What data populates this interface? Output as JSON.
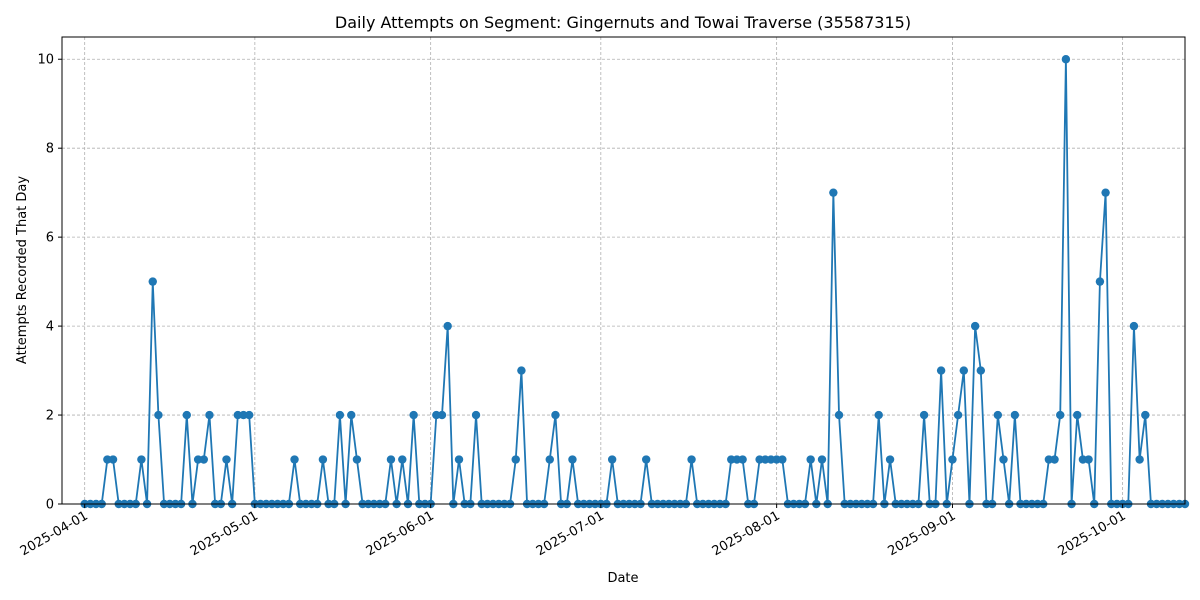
{
  "chart_data": {
    "type": "line",
    "title": "Daily Attempts on Segment: Gingernuts and Towai Traverse (35587315)",
    "xlabel": "Date",
    "ylabel": "Attempts Recorded That Day",
    "x_start": "2025-04-01",
    "xlim": [
      "2025-03-28",
      "2025-10-12"
    ],
    "ylim": [
      0,
      10.5
    ],
    "grid": true,
    "x_ticks": [
      "2025-04-01",
      "2025-05-01",
      "2025-06-01",
      "2025-07-01",
      "2025-08-01",
      "2025-09-01",
      "2025-10-01"
    ],
    "y_ticks": [
      0,
      2,
      4,
      6,
      8,
      10
    ],
    "series": [
      {
        "color": "#1f77b4",
        "marker": "circle",
        "values": [
          0,
          0,
          0,
          0,
          1,
          1,
          0,
          0,
          0,
          0,
          1,
          0,
          5,
          2,
          0,
          0,
          0,
          0,
          2,
          0,
          1,
          1,
          2,
          0,
          0,
          1,
          0,
          2,
          2,
          2,
          0,
          0,
          0,
          0,
          0,
          0,
          0,
          1,
          0,
          0,
          0,
          0,
          1,
          0,
          0,
          2,
          0,
          2,
          1,
          0,
          0,
          0,
          0,
          0,
          1,
          0,
          1,
          0,
          2,
          0,
          0,
          0,
          2,
          2,
          4,
          0,
          1,
          0,
          0,
          2,
          0,
          0,
          0,
          0,
          0,
          0,
          1,
          3,
          0,
          0,
          0,
          0,
          1,
          2,
          0,
          0,
          1,
          0,
          0,
          0,
          0,
          0,
          0,
          1,
          0,
          0,
          0,
          0,
          0,
          1,
          0,
          0,
          0,
          0,
          0,
          0,
          0,
          1,
          0,
          0,
          0,
          0,
          0,
          0,
          1,
          1,
          1,
          0,
          0,
          1,
          1,
          1,
          1,
          1,
          0,
          0,
          0,
          0,
          1,
          0,
          1,
          0,
          7,
          2,
          0,
          0,
          0,
          0,
          0,
          0,
          2,
          0,
          1,
          0,
          0,
          0,
          0,
          0,
          2,
          0,
          0,
          3,
          0,
          1,
          2,
          3,
          0,
          4,
          3,
          0,
          0,
          2,
          1,
          0,
          2,
          0,
          0,
          0,
          0,
          0,
          1,
          1,
          2,
          10,
          0,
          2,
          1,
          1,
          0,
          5,
          7,
          0,
          0,
          0,
          0,
          4,
          1,
          2,
          0,
          0,
          0,
          0,
          0,
          0,
          0
        ]
      }
    ]
  }
}
